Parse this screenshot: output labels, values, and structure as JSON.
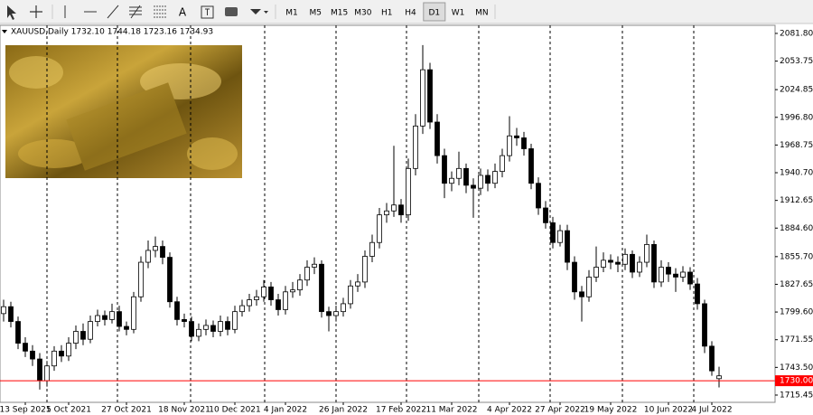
{
  "toolbar": {
    "text_tool": "A",
    "timeframes": [
      "M1",
      "M5",
      "M15",
      "M30",
      "H1",
      "H4",
      "D1",
      "W1",
      "MN"
    ],
    "active": "D1"
  },
  "chart_data": {
    "type": "candlestick",
    "title": "XAUUSD,Daily  1732.10 1744.18 1723.16 1734.93",
    "categories": [
      null,
      null,
      null,
      "13 Sep 2021",
      null,
      null,
      null,
      null,
      null,
      "5 Oct 2021",
      null,
      null,
      null,
      null,
      null,
      null,
      null,
      "27 Oct 2021",
      null,
      null,
      null,
      null,
      null,
      null,
      null,
      "18 Nov 2021",
      null,
      null,
      null,
      null,
      null,
      null,
      "10 Dec 2021",
      null,
      null,
      null,
      null,
      null,
      null,
      "4 Jan 2022",
      null,
      null,
      null,
      null,
      null,
      null,
      null,
      "26 Jan 2022",
      null,
      null,
      null,
      null,
      null,
      null,
      null,
      "17 Feb 2022",
      null,
      null,
      null,
      null,
      null,
      null,
      "11 Mar 2022",
      null,
      null,
      null,
      null,
      null,
      null,
      null,
      "4 Apr 2022",
      null,
      null,
      null,
      null,
      null,
      null,
      "27 Apr 2022",
      null,
      null,
      null,
      null,
      null,
      null,
      "19 May 2022",
      null,
      null,
      null,
      null,
      null,
      null,
      null,
      "10 Jun 2022",
      null,
      null,
      null,
      null,
      null,
      "4 Jul 2022",
      null
    ],
    "open": [
      1798,
      1805,
      1790,
      1768,
      1760,
      1752,
      1730,
      1745,
      1760,
      1755,
      1768,
      1780,
      1772,
      1790,
      1796,
      1792,
      1800,
      1785,
      1782,
      1815,
      1850,
      1862,
      1866,
      1855,
      1810,
      1792,
      1790,
      1775,
      1782,
      1786,
      1780,
      1790,
      1782,
      1800,
      1806,
      1812,
      1815,
      1825,
      1812,
      1802,
      1820,
      1822,
      1832,
      1845,
      1848,
      1800,
      1796,
      1800,
      1808,
      1826,
      1830,
      1856,
      1870,
      1898,
      1902,
      1908,
      1898,
      1945,
      1988,
      2045,
      1992,
      1958,
      1930,
      1935,
      1945,
      1928,
      1925,
      1938,
      1930,
      1942,
      1958,
      1978,
      1976,
      1965,
      1930,
      1905,
      1890,
      1870,
      1882,
      1850,
      1820,
      1815,
      1835,
      1845,
      1852,
      1850,
      1848,
      1858,
      1840,
      1850,
      1868,
      1830,
      1845,
      1838,
      1835,
      1840,
      1828,
      1808,
      1765,
      1732.1
    ],
    "high": [
      1812,
      1810,
      1795,
      1774,
      1766,
      1758,
      1750,
      1765,
      1766,
      1774,
      1786,
      1788,
      1796,
      1802,
      1801,
      1808,
      1806,
      1790,
      1820,
      1856,
      1872,
      1876,
      1872,
      1860,
      1815,
      1798,
      1795,
      1788,
      1792,
      1791,
      1796,
      1795,
      1806,
      1812,
      1818,
      1822,
      1832,
      1830,
      1818,
      1826,
      1830,
      1838,
      1852,
      1855,
      1852,
      1805,
      1806,
      1814,
      1832,
      1838,
      1862,
      1878,
      1905,
      1910,
      1968,
      1914,
      1955,
      2000,
      2070,
      2052,
      2000,
      1965,
      1942,
      1962,
      1950,
      1935,
      1945,
      1944,
      1950,
      1965,
      1998,
      1986,
      1982,
      1970,
      1936,
      1912,
      1896,
      1888,
      1888,
      1856,
      1826,
      1842,
      1866,
      1860,
      1858,
      1856,
      1864,
      1862,
      1856,
      1878,
      1872,
      1852,
      1850,
      1844,
      1846,
      1845,
      1834,
      1812,
      1770,
      1744.18
    ],
    "low": [
      1790,
      1784,
      1762,
      1754,
      1745,
      1721,
      1724,
      1740,
      1749,
      1750,
      1762,
      1766,
      1768,
      1785,
      1786,
      1788,
      1780,
      1776,
      1778,
      1810,
      1844,
      1855,
      1848,
      1804,
      1786,
      1784,
      1770,
      1770,
      1776,
      1774,
      1775,
      1776,
      1778,
      1795,
      1800,
      1806,
      1810,
      1806,
      1796,
      1797,
      1814,
      1816,
      1826,
      1838,
      1794,
      1780,
      1790,
      1795,
      1803,
      1820,
      1824,
      1850,
      1864,
      1890,
      1896,
      1890,
      1892,
      1938,
      1980,
      1985,
      1950,
      1915,
      1922,
      1928,
      1920,
      1895,
      1918,
      1922,
      1925,
      1936,
      1952,
      1968,
      1958,
      1924,
      1898,
      1884,
      1864,
      1866,
      1842,
      1812,
      1790,
      1810,
      1830,
      1840,
      1843,
      1840,
      1842,
      1834,
      1835,
      1845,
      1824,
      1825,
      1830,
      1820,
      1830,
      1822,
      1802,
      1758,
      1735,
      1723.16
    ],
    "close": [
      1805,
      1790,
      1768,
      1760,
      1752,
      1730,
      1745,
      1760,
      1755,
      1768,
      1780,
      1772,
      1790,
      1796,
      1792,
      1800,
      1785,
      1782,
      1815,
      1850,
      1862,
      1866,
      1855,
      1810,
      1792,
      1790,
      1775,
      1782,
      1786,
      1780,
      1790,
      1782,
      1800,
      1806,
      1812,
      1815,
      1825,
      1812,
      1802,
      1820,
      1822,
      1832,
      1845,
      1848,
      1800,
      1796,
      1800,
      1808,
      1826,
      1830,
      1856,
      1870,
      1898,
      1902,
      1908,
      1898,
      1945,
      1988,
      2045,
      1992,
      1958,
      1930,
      1935,
      1945,
      1928,
      1925,
      1938,
      1930,
      1942,
      1958,
      1978,
      1976,
      1965,
      1930,
      1905,
      1890,
      1870,
      1882,
      1850,
      1820,
      1815,
      1835,
      1845,
      1852,
      1850,
      1848,
      1858,
      1840,
      1850,
      1868,
      1830,
      1845,
      1838,
      1835,
      1840,
      1828,
      1808,
      1765,
      1740,
      1734.93
    ],
    "up_color": "#ffffff",
    "down_color": "#000000",
    "ylim": [
      1708.1,
      2090.0
    ],
    "yticks": [
      {
        "value": 2081.8,
        "label": "2081.80"
      },
      {
        "value": 2053.75,
        "label": "2053.75"
      },
      {
        "value": 2024.85,
        "label": "2024.85"
      },
      {
        "value": 1996.8,
        "label": "1996.80"
      },
      {
        "value": 1968.75,
        "label": "1968.75"
      },
      {
        "value": 1940.7,
        "label": "1940.70"
      },
      {
        "value": 1912.65,
        "label": "1912.65"
      },
      {
        "value": 1884.6,
        "label": "1884.60"
      },
      {
        "value": 1855.7,
        "label": "1855.70"
      },
      {
        "value": 1827.65,
        "label": "1827.65"
      },
      {
        "value": 1799.6,
        "label": "1799.60"
      },
      {
        "value": 1771.55,
        "label": "1771.55"
      },
      {
        "value": 1743.5,
        "label": "1743.50"
      },
      {
        "value": 1715.45,
        "label": "1715.45"
      }
    ],
    "price_line": {
      "value": 1730,
      "label": "1730.00",
      "color": "#ff0000"
    }
  }
}
